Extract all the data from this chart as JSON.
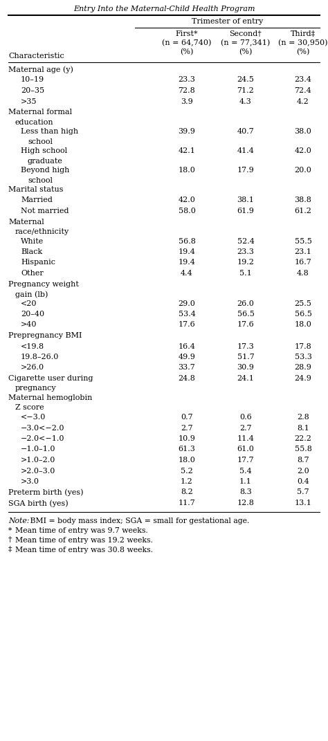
{
  "title": "Entry Into the Maternal-Child Health Program",
  "header_main": "Trimester of entry",
  "col_headers": [
    [
      "First*",
      "(n = 64,740)",
      "(%)"
    ],
    [
      "Second†",
      "(n = 77,341)",
      "(%)"
    ],
    [
      "Third‡",
      "(n = 30,950)",
      "(%)"
    ]
  ],
  "char_header": "Characteristic",
  "rows": [
    {
      "label": "Maternal age (y)",
      "indent": 0,
      "vals": [
        "",
        "",
        ""
      ],
      "is_section": true,
      "two_line": false
    },
    {
      "label": "10–19",
      "indent": 1,
      "vals": [
        "23.3",
        "24.5",
        "23.4"
      ],
      "is_section": false,
      "two_line": false
    },
    {
      "label": "20–35",
      "indent": 1,
      "vals": [
        "72.8",
        "71.2",
        "72.4"
      ],
      "is_section": false,
      "two_line": false
    },
    {
      "label": ">35",
      "indent": 1,
      "vals": [
        "3.9",
        "4.3",
        "4.2"
      ],
      "is_section": false,
      "two_line": false
    },
    {
      "label": "Maternal formal",
      "label2": "   education",
      "indent": 0,
      "vals": [
        "",
        "",
        ""
      ],
      "is_section": true,
      "two_line": true
    },
    {
      "label": "Less than high",
      "label2": "   school",
      "indent": 1,
      "vals": [
        "39.9",
        "40.7",
        "38.0"
      ],
      "is_section": false,
      "two_line": true
    },
    {
      "label": "High school",
      "label2": "   graduate",
      "indent": 1,
      "vals": [
        "42.1",
        "41.4",
        "42.0"
      ],
      "is_section": false,
      "two_line": true
    },
    {
      "label": "Beyond high",
      "label2": "   school",
      "indent": 1,
      "vals": [
        "18.0",
        "17.9",
        "20.0"
      ],
      "is_section": false,
      "two_line": true
    },
    {
      "label": "Marital status",
      "indent": 0,
      "vals": [
        "",
        "",
        ""
      ],
      "is_section": true,
      "two_line": false
    },
    {
      "label": "Married",
      "indent": 1,
      "vals": [
        "42.0",
        "38.1",
        "38.8"
      ],
      "is_section": false,
      "two_line": false
    },
    {
      "label": "Not married",
      "indent": 1,
      "vals": [
        "58.0",
        "61.9",
        "61.2"
      ],
      "is_section": false,
      "two_line": false
    },
    {
      "label": "Maternal",
      "label2": "   race/ethnicity",
      "indent": 0,
      "vals": [
        "",
        "",
        ""
      ],
      "is_section": true,
      "two_line": true
    },
    {
      "label": "White",
      "indent": 1,
      "vals": [
        "56.8",
        "52.4",
        "55.5"
      ],
      "is_section": false,
      "two_line": false
    },
    {
      "label": "Black",
      "indent": 1,
      "vals": [
        "19.4",
        "23.3",
        "23.1"
      ],
      "is_section": false,
      "two_line": false
    },
    {
      "label": "Hispanic",
      "indent": 1,
      "vals": [
        "19.4",
        "19.2",
        "16.7"
      ],
      "is_section": false,
      "two_line": false
    },
    {
      "label": "Other",
      "indent": 1,
      "vals": [
        "4.4",
        "5.1",
        "4.8"
      ],
      "is_section": false,
      "two_line": false
    },
    {
      "label": "Pregnancy weight",
      "label2": "   gain (lb)",
      "indent": 0,
      "vals": [
        "",
        "",
        ""
      ],
      "is_section": true,
      "two_line": true
    },
    {
      "label": "<20",
      "indent": 1,
      "vals": [
        "29.0",
        "26.0",
        "25.5"
      ],
      "is_section": false,
      "two_line": false
    },
    {
      "label": "20–40",
      "indent": 1,
      "vals": [
        "53.4",
        "56.5",
        "56.5"
      ],
      "is_section": false,
      "two_line": false
    },
    {
      "label": ">40",
      "indent": 1,
      "vals": [
        "17.6",
        "17.6",
        "18.0"
      ],
      "is_section": false,
      "two_line": false
    },
    {
      "label": "Prepregnancy BMI",
      "indent": 0,
      "vals": [
        "",
        "",
        ""
      ],
      "is_section": true,
      "two_line": false
    },
    {
      "label": "<19.8",
      "indent": 1,
      "vals": [
        "16.4",
        "17.3",
        "17.8"
      ],
      "is_section": false,
      "two_line": false
    },
    {
      "label": "19.8–26.0",
      "indent": 1,
      "vals": [
        "49.9",
        "51.7",
        "53.3"
      ],
      "is_section": false,
      "two_line": false
    },
    {
      "label": ">26.0",
      "indent": 1,
      "vals": [
        "33.7",
        "30.9",
        "28.9"
      ],
      "is_section": false,
      "two_line": false
    },
    {
      "label": "Cigarette user during",
      "label2": "   pregnancy",
      "indent": 0,
      "vals": [
        "24.8",
        "24.1",
        "24.9"
      ],
      "is_section": false,
      "two_line": true
    },
    {
      "label": "Maternal hemoglobin",
      "label2": "   Z score",
      "indent": 0,
      "vals": [
        "",
        "",
        ""
      ],
      "is_section": true,
      "two_line": true
    },
    {
      "label": "<−3.0",
      "indent": 1,
      "vals": [
        "0.7",
        "0.6",
        "2.8"
      ],
      "is_section": false,
      "two_line": false
    },
    {
      "label": "−3.0<−2.0",
      "indent": 1,
      "vals": [
        "2.7",
        "2.7",
        "8.1"
      ],
      "is_section": false,
      "two_line": false
    },
    {
      "label": "−2.0<−1.0",
      "indent": 1,
      "vals": [
        "10.9",
        "11.4",
        "22.2"
      ],
      "is_section": false,
      "two_line": false
    },
    {
      "label": "−1.0–1.0",
      "indent": 1,
      "vals": [
        "61.3",
        "61.0",
        "55.8"
      ],
      "is_section": false,
      "two_line": false
    },
    {
      "label": ">1.0–2.0",
      "indent": 1,
      "vals": [
        "18.0",
        "17.7",
        "8.7"
      ],
      "is_section": false,
      "two_line": false
    },
    {
      "label": ">2.0–3.0",
      "indent": 1,
      "vals": [
        "5.2",
        "5.4",
        "2.0"
      ],
      "is_section": false,
      "two_line": false
    },
    {
      "label": ">3.0",
      "indent": 1,
      "vals": [
        "1.2",
        "1.1",
        "0.4"
      ],
      "is_section": false,
      "two_line": false
    },
    {
      "label": "Preterm birth (yes)",
      "indent": 0,
      "vals": [
        "8.2",
        "8.3",
        "5.7"
      ],
      "is_section": false,
      "two_line": false
    },
    {
      "label": "SGA birth (yes)",
      "indent": 0,
      "vals": [
        "11.7",
        "12.8",
        "13.1"
      ],
      "is_section": false,
      "two_line": false
    }
  ],
  "footnotes": [
    [
      "italic",
      "Note:",
      " BMI = body mass index; SGA = small for gestational age."
    ],
    [
      "normal",
      "* ",
      "Mean time of entry was 9.7 weeks."
    ],
    [
      "normal",
      "† ",
      "Mean time of entry was 19.2 weeks."
    ],
    [
      "normal",
      "‡ ",
      "Mean time of entry was 30.8 weeks."
    ]
  ],
  "bg_color": "#ffffff",
  "text_color": "#000000",
  "fontsize": 8.0,
  "fn_fontsize": 7.8
}
